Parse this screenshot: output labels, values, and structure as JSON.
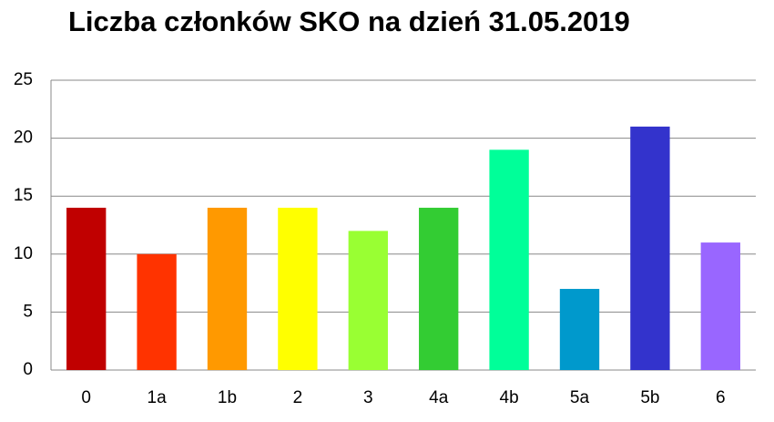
{
  "chart_data": {
    "type": "bar",
    "title": "Liczba członków SKO na dzień 31.05.2019",
    "categories": [
      "0",
      "1a",
      "1b",
      "2",
      "3",
      "4a",
      "4b",
      "5a",
      "5b",
      "6"
    ],
    "values": [
      14,
      10,
      14,
      14,
      12,
      14,
      19,
      7,
      21,
      11
    ],
    "colors": [
      "#c00000",
      "#ff3300",
      "#ff9900",
      "#ffff00",
      "#99ff33",
      "#33cc33",
      "#00ff99",
      "#0099cc",
      "#3333cc",
      "#9966ff"
    ],
    "ylim": [
      0,
      25
    ],
    "yticks": [
      0,
      5,
      10,
      15,
      20,
      25
    ],
    "grid": true
  }
}
